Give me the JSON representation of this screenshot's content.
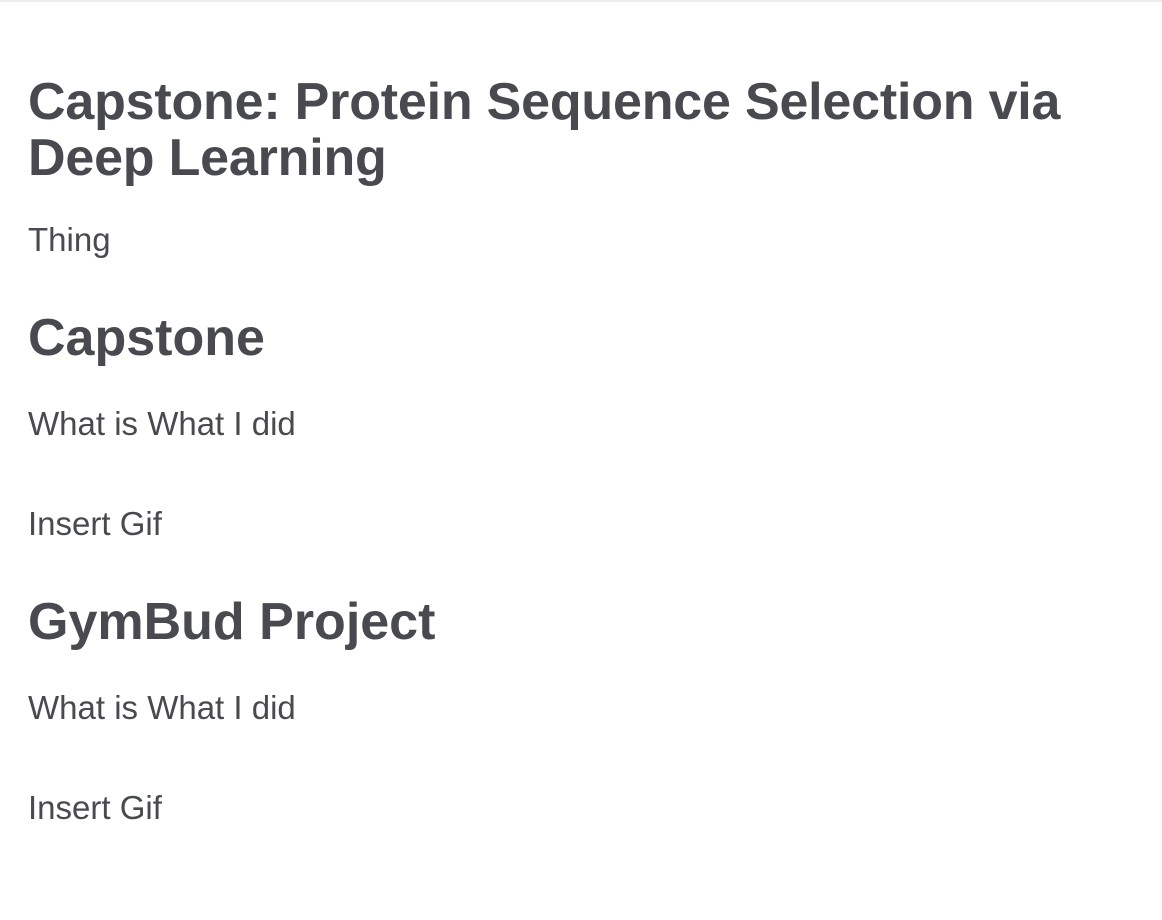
{
  "page": {
    "title": "Capstone: Protein Sequence Selection via Deep Learning",
    "intro": "Thing"
  },
  "sections": [
    {
      "heading": "Capstone",
      "description": "What is What I did",
      "media_placeholder": "Insert Gif"
    },
    {
      "heading": "GymBud Project",
      "description": "What is What I did",
      "media_placeholder": "Insert Gif"
    }
  ],
  "colors": {
    "text": "#484a4f",
    "background": "#ffffff"
  }
}
